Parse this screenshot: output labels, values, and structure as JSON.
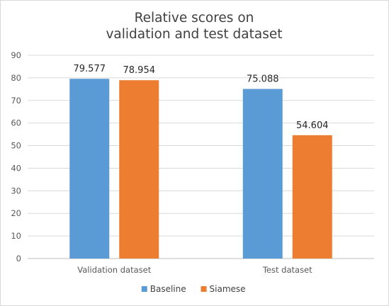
{
  "chart_data": {
    "type": "bar",
    "title": [
      "Relative scores on",
      "validation and test dataset"
    ],
    "categories": [
      "Validation dataset",
      "Test dataset"
    ],
    "series": [
      {
        "name": "Baseline",
        "values": [
          79.577,
          75.088
        ],
        "color": "#5b9bd5"
      },
      {
        "name": "Siamese",
        "values": [
          78.954,
          54.604
        ],
        "color": "#ed7d31"
      }
    ],
    "data_labels": [
      [
        "79.577",
        "75.088"
      ],
      [
        "78.954",
        "54.604"
      ]
    ],
    "ylim": [
      0,
      90
    ],
    "yticks": [
      0,
      10,
      20,
      30,
      40,
      50,
      60,
      70,
      80,
      90
    ],
    "grid": true,
    "legend": "bottom",
    "xlabel": "",
    "ylabel": ""
  }
}
